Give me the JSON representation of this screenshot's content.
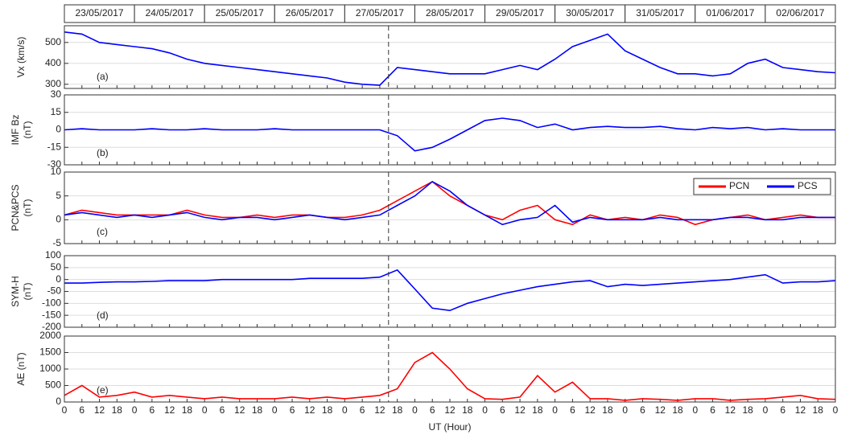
{
  "dates": [
    "23/05/2017",
    "24/05/2017",
    "25/05/2017",
    "26/05/2017",
    "27/05/2017",
    "28/05/2017",
    "29/05/2017",
    "30/05/2017",
    "31/05/2017",
    "01/06/2017",
    "02/06/2017"
  ],
  "chart_data": [
    {
      "type": "line",
      "ylabel": [
        "Vx (km/s)"
      ],
      "panel_label": "(a)",
      "grid": true,
      "vline": 111,
      "xlim": [
        0,
        264
      ],
      "ylim": [
        280,
        580
      ],
      "yticks": [
        300,
        400,
        500
      ],
      "x": [
        0,
        6,
        12,
        18,
        24,
        30,
        36,
        42,
        48,
        54,
        60,
        66,
        72,
        78,
        84,
        90,
        96,
        102,
        108,
        114,
        120,
        126,
        132,
        138,
        144,
        150,
        156,
        162,
        168,
        174,
        180,
        186,
        192,
        198,
        204,
        210,
        216,
        222,
        228,
        234,
        240,
        246,
        252,
        258,
        264
      ],
      "series": [
        {
          "name": "Vx",
          "color": "#0000ff",
          "values": [
            550,
            540,
            500,
            490,
            480,
            470,
            450,
            420,
            400,
            390,
            380,
            370,
            360,
            350,
            340,
            330,
            310,
            300,
            295,
            380,
            370,
            360,
            350,
            350,
            350,
            370,
            390,
            370,
            420,
            480,
            510,
            540,
            460,
            420,
            380,
            350,
            350,
            340,
            350,
            400,
            420,
            380,
            370,
            360,
            355
          ]
        }
      ]
    },
    {
      "type": "line",
      "ylabel": [
        "IMF Bz",
        "(nT)"
      ],
      "panel_label": "(b)",
      "grid": true,
      "vline": 111,
      "xlim": [
        0,
        264
      ],
      "ylim": [
        -30,
        30
      ],
      "yticks": [
        -30,
        -15,
        0,
        15,
        30
      ],
      "x": [
        0,
        6,
        12,
        18,
        24,
        30,
        36,
        42,
        48,
        54,
        60,
        66,
        72,
        78,
        84,
        90,
        96,
        102,
        108,
        114,
        120,
        126,
        132,
        138,
        144,
        150,
        156,
        162,
        168,
        174,
        180,
        186,
        192,
        198,
        204,
        210,
        216,
        222,
        228,
        234,
        240,
        246,
        252,
        258,
        264
      ],
      "series": [
        {
          "name": "Bz",
          "color": "#0000ff",
          "values": [
            0,
            1,
            0,
            0,
            0,
            1,
            0,
            0,
            1,
            0,
            0,
            0,
            1,
            0,
            0,
            0,
            0,
            0,
            0,
            -5,
            -18,
            -15,
            -8,
            0,
            8,
            10,
            8,
            2,
            5,
            0,
            2,
            3,
            2,
            2,
            3,
            1,
            0,
            2,
            1,
            2,
            0,
            1,
            0,
            0,
            0
          ]
        }
      ]
    },
    {
      "type": "line",
      "ylabel": [
        "PCN&PCS",
        "(nT)"
      ],
      "panel_label": "(c)",
      "grid": true,
      "vline": 111,
      "legend": "upper right",
      "xlim": [
        0,
        264
      ],
      "ylim": [
        -5,
        10
      ],
      "yticks": [
        -5,
        0,
        5,
        10
      ],
      "x": [
        0,
        6,
        12,
        18,
        24,
        30,
        36,
        42,
        48,
        54,
        60,
        66,
        72,
        78,
        84,
        90,
        96,
        102,
        108,
        114,
        120,
        126,
        132,
        138,
        144,
        150,
        156,
        162,
        168,
        174,
        180,
        186,
        192,
        198,
        204,
        210,
        216,
        222,
        228,
        234,
        240,
        246,
        252,
        258,
        264
      ],
      "series": [
        {
          "name": "PCN",
          "color": "#ff0000",
          "values": [
            1,
            2,
            1.5,
            1,
            1,
            1,
            1,
            2,
            1,
            0.5,
            0.5,
            1,
            0.5,
            1,
            1,
            0.5,
            0.5,
            1,
            2,
            4,
            6,
            8,
            5,
            3,
            1,
            0,
            2,
            3,
            0,
            -1,
            1,
            0,
            0.5,
            0,
            1,
            0.5,
            -1,
            0,
            0.5,
            1,
            0,
            0.5,
            1,
            0.5,
            0.5
          ]
        },
        {
          "name": "PCS",
          "color": "#0000ff",
          "values": [
            1,
            1.5,
            1,
            0.5,
            1,
            0.5,
            1,
            1.5,
            0.5,
            0,
            0.5,
            0.5,
            0,
            0.5,
            1,
            0.5,
            0,
            0.5,
            1,
            3,
            5,
            8,
            6,
            3,
            1,
            -1,
            0,
            0.5,
            3,
            -0.5,
            0.5,
            0,
            0,
            0,
            0.5,
            0,
            0,
            0,
            0.5,
            0.5,
            0,
            0,
            0.5,
            0.5,
            0.5
          ]
        }
      ]
    },
    {
      "type": "line",
      "ylabel": [
        "SYM-H",
        "(nT)"
      ],
      "panel_label": "(d)",
      "grid": true,
      "vline": 111,
      "xlim": [
        0,
        264
      ],
      "ylim": [
        -200,
        100
      ],
      "yticks": [
        -200,
        -150,
        -100,
        -50,
        0,
        50,
        100
      ],
      "x": [
        0,
        6,
        12,
        18,
        24,
        30,
        36,
        42,
        48,
        54,
        60,
        66,
        72,
        78,
        84,
        90,
        96,
        102,
        108,
        114,
        120,
        126,
        132,
        138,
        144,
        150,
        156,
        162,
        168,
        174,
        180,
        186,
        192,
        198,
        204,
        210,
        216,
        222,
        228,
        234,
        240,
        246,
        252,
        258,
        264
      ],
      "series": [
        {
          "name": "SYM-H",
          "color": "#0000ff",
          "values": [
            -15,
            -15,
            -12,
            -10,
            -10,
            -8,
            -5,
            -5,
            -5,
            0,
            0,
            0,
            0,
            0,
            5,
            5,
            5,
            5,
            10,
            40,
            -40,
            -120,
            -130,
            -100,
            -80,
            -60,
            -45,
            -30,
            -20,
            -10,
            -5,
            -30,
            -20,
            -25,
            -20,
            -15,
            -10,
            -5,
            0,
            10,
            20,
            -15,
            -10,
            -10,
            -5
          ]
        }
      ]
    },
    {
      "type": "line",
      "ylabel": [
        "AE (nT)"
      ],
      "panel_label": "(e)",
      "grid": true,
      "vline": 111,
      "xlabel": "UT (Hour)",
      "xlim": [
        0,
        264
      ],
      "ylim": [
        0,
        2000
      ],
      "yticks": [
        0,
        500,
        1000,
        1500,
        2000
      ],
      "xticks": [
        0,
        {
          "value": 6,
          "label": "6"
        },
        {
          "value": 12,
          "label": "12"
        },
        {
          "value": 18,
          "label": "18"
        },
        {
          "value": 24,
          "label": "0"
        },
        {
          "value": 30,
          "label": "6"
        },
        {
          "value": 36,
          "label": "12"
        },
        {
          "value": 42,
          "label": "18"
        },
        {
          "value": 48,
          "label": "0"
        },
        {
          "value": 54,
          "label": "6"
        },
        {
          "value": 60,
          "label": "12"
        },
        {
          "value": 66,
          "label": "18"
        },
        {
          "value": 72,
          "label": "0"
        },
        {
          "value": 78,
          "label": "6"
        },
        {
          "value": 84,
          "label": "12"
        },
        {
          "value": 90,
          "label": "18"
        },
        {
          "value": 96,
          "label": "0"
        },
        {
          "value": 102,
          "label": "6"
        },
        {
          "value": 108,
          "label": "12"
        },
        {
          "value": 114,
          "label": "18"
        },
        {
          "value": 120,
          "label": "0"
        },
        {
          "value": 126,
          "label": "6"
        },
        {
          "value": 132,
          "label": "12"
        },
        {
          "value": 138,
          "label": "18"
        },
        {
          "value": 144,
          "label": "0"
        },
        {
          "value": 150,
          "label": "6"
        },
        {
          "value": 156,
          "label": "12"
        },
        {
          "value": 162,
          "label": "18"
        },
        {
          "value": 168,
          "label": "0"
        },
        {
          "value": 174,
          "label": "6"
        },
        {
          "value": 180,
          "label": "12"
        },
        {
          "value": 186,
          "label": "18"
        },
        {
          "value": 192,
          "label": "0"
        },
        {
          "value": 198,
          "label": "6"
        },
        {
          "value": 204,
          "label": "12"
        },
        {
          "value": 210,
          "label": "18"
        },
        {
          "value": 216,
          "label": "0"
        },
        {
          "value": 222,
          "label": "6"
        },
        {
          "value": 228,
          "label": "12"
        },
        {
          "value": 234,
          "label": "18"
        },
        {
          "value": 240,
          "label": "0"
        },
        {
          "value": 246,
          "label": "6"
        },
        {
          "value": 252,
          "label": "12"
        },
        {
          "value": 258,
          "label": "18"
        },
        {
          "value": 264,
          "label": "0"
        }
      ],
      "x": [
        0,
        6,
        12,
        18,
        24,
        30,
        36,
        42,
        48,
        54,
        60,
        66,
        72,
        78,
        84,
        90,
        96,
        102,
        108,
        114,
        120,
        126,
        132,
        138,
        144,
        150,
        156,
        162,
        168,
        174,
        180,
        186,
        192,
        198,
        204,
        210,
        216,
        222,
        228,
        234,
        240,
        246,
        252,
        258,
        264
      ],
      "series": [
        {
          "name": "AE",
          "color": "#ff0000",
          "values": [
            200,
            500,
            150,
            200,
            300,
            150,
            200,
            150,
            100,
            150,
            100,
            100,
            100,
            150,
            100,
            150,
            100,
            150,
            200,
            400,
            1200,
            1500,
            1000,
            400,
            100,
            80,
            150,
            800,
            300,
            600,
            100,
            100,
            50,
            100,
            80,
            50,
            100,
            100,
            50,
            80,
            100,
            150,
            200,
            100,
            80
          ]
        }
      ]
    }
  ]
}
